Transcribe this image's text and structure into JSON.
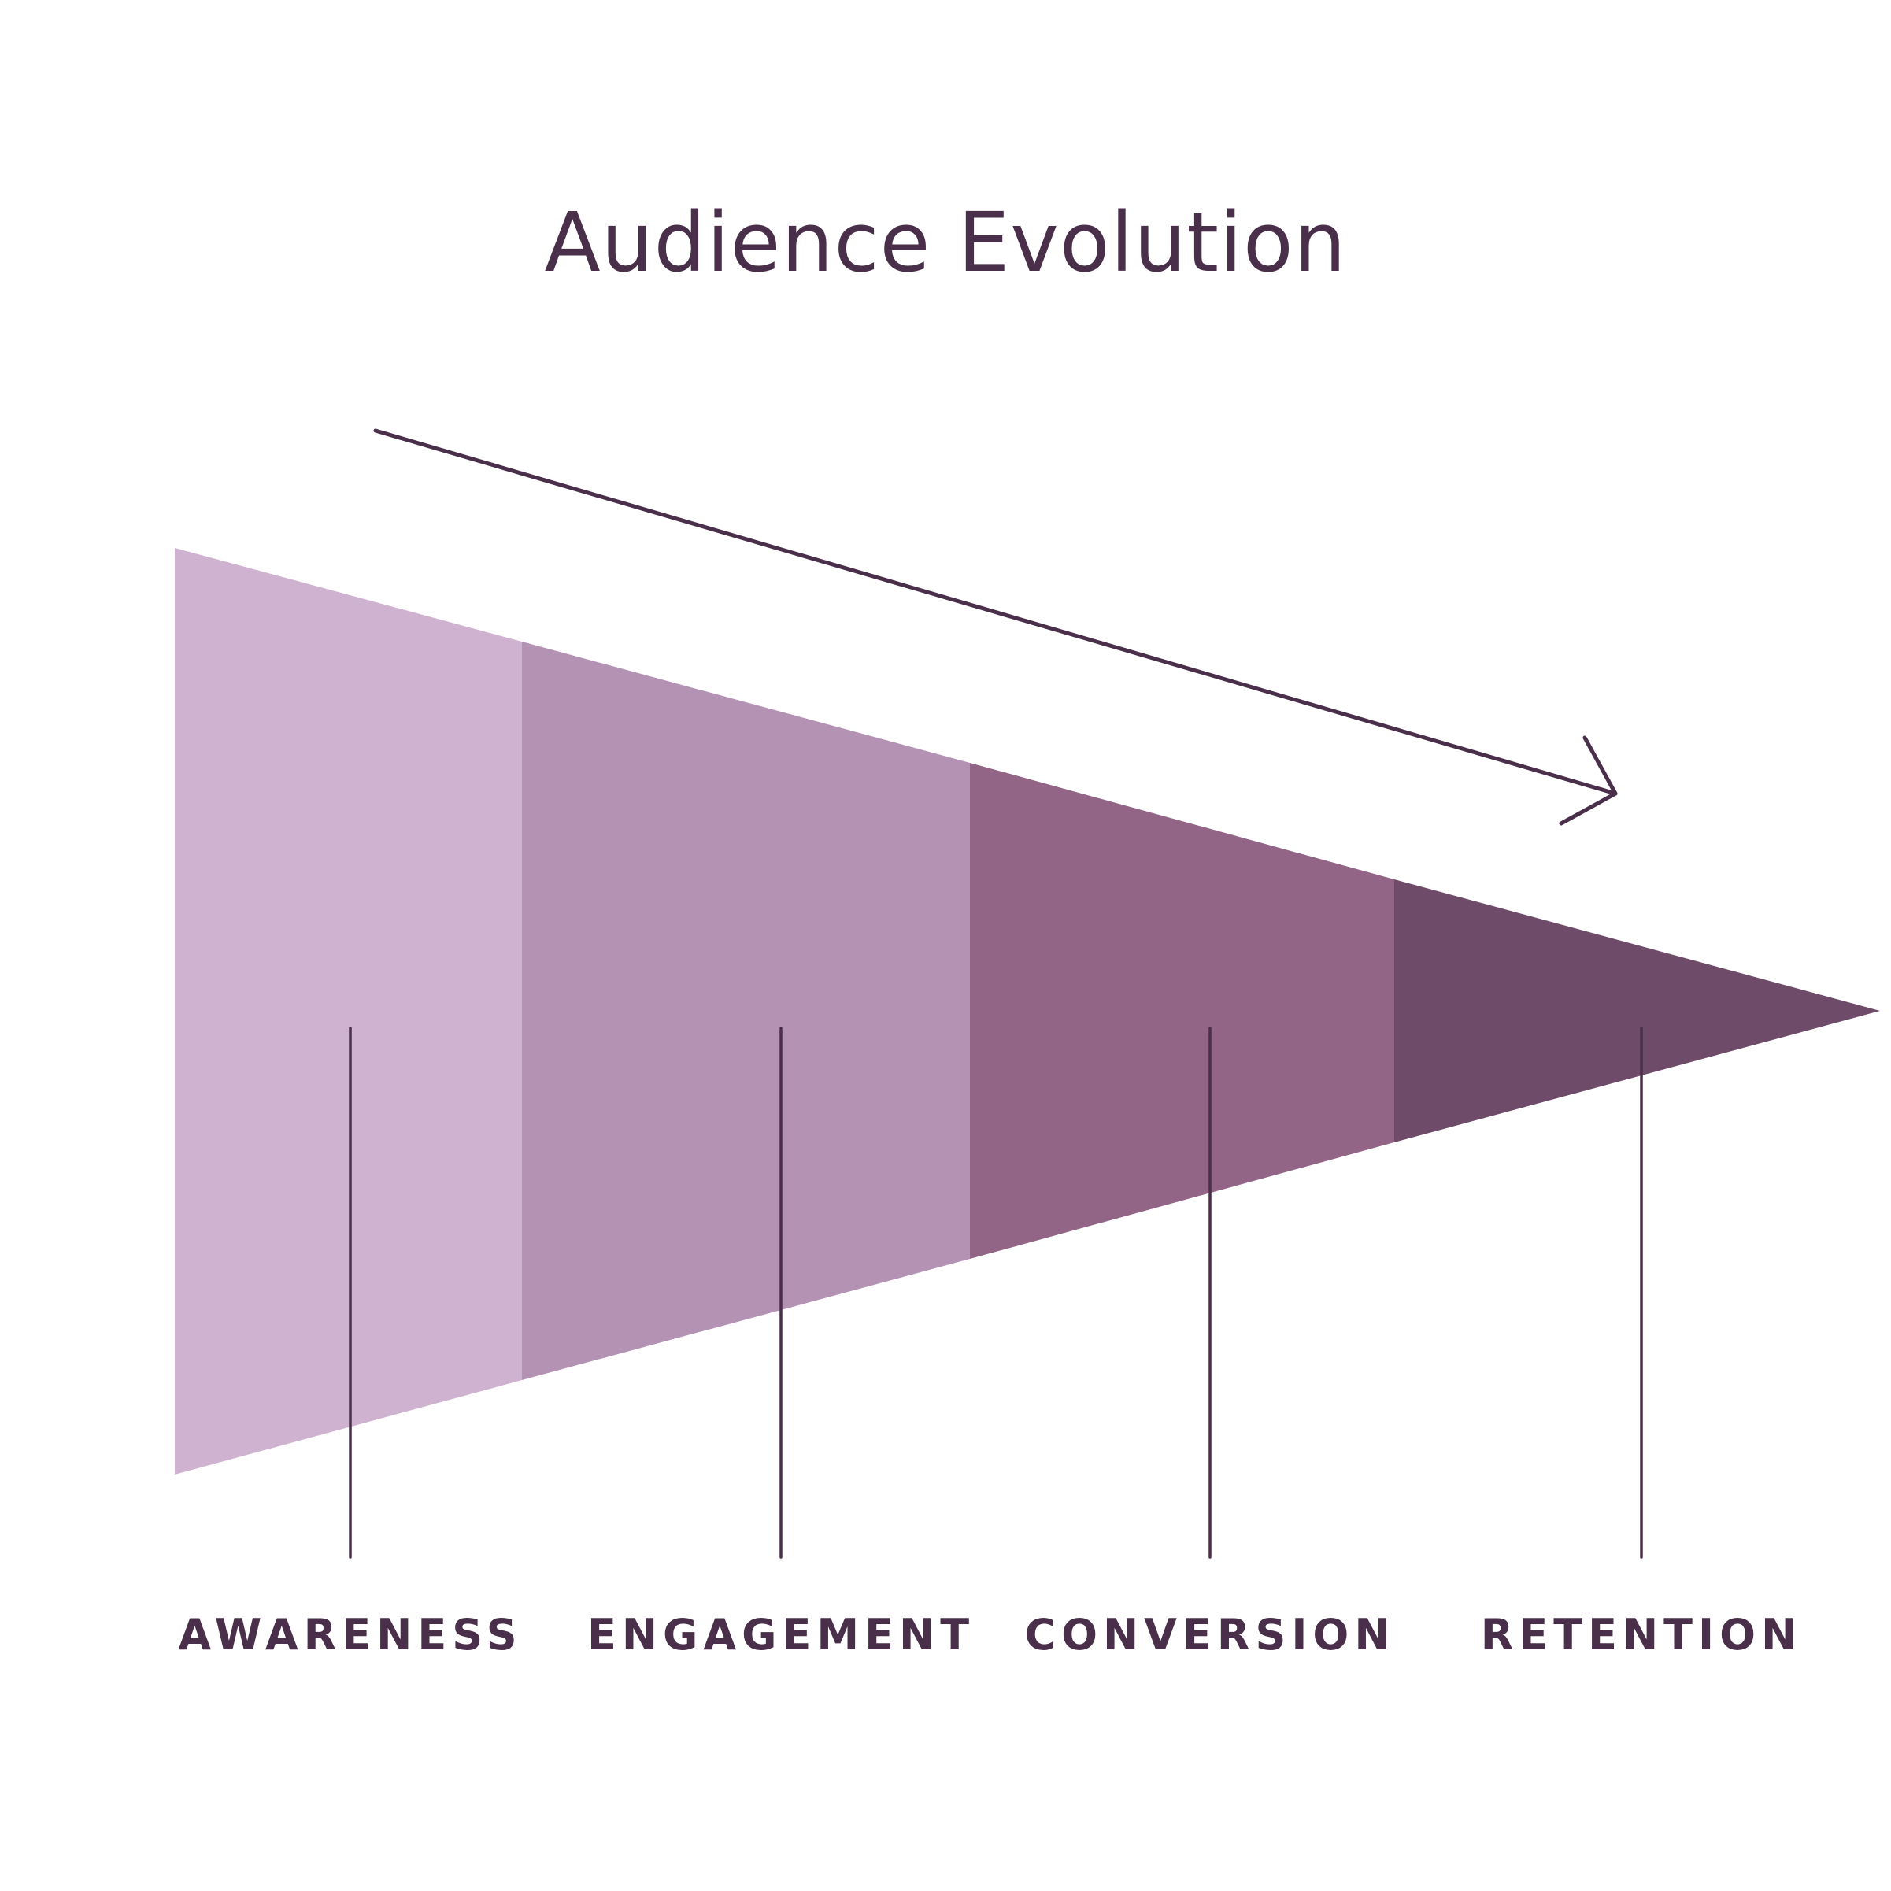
{
  "title": "Audience Evolution",
  "colors": {
    "text": "#4a2f4b",
    "line": "#4a2f4b",
    "background": "#ffffff"
  },
  "stages": [
    {
      "label": "AWARENESS",
      "color": "#cfb2d0"
    },
    {
      "label": "ENGAGEMENT",
      "color": "#b492b4"
    },
    {
      "label": "CONVERSION",
      "color": "#926587"
    },
    {
      "label": "RETENTION",
      "color": "#6e4c69"
    }
  ]
}
